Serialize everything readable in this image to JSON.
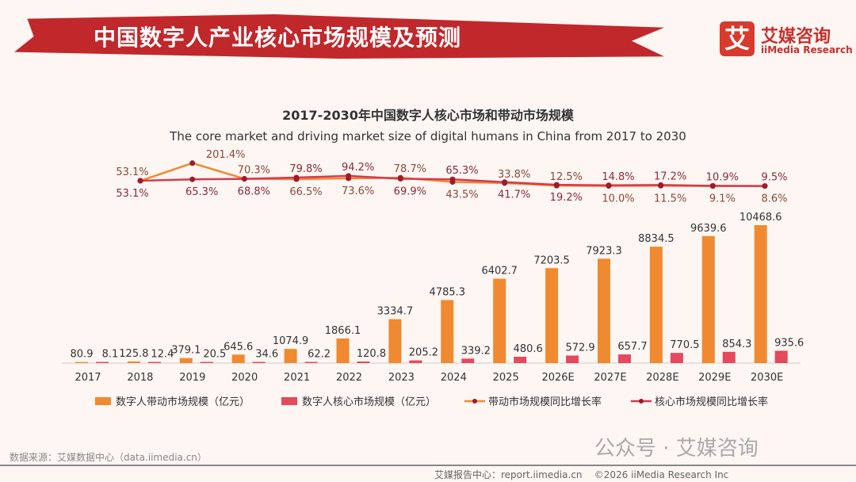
{
  "header": {
    "title": "中国数字人产业核心市场规模及预测",
    "logo_mark": "艾",
    "logo_cn": "艾媒咨询",
    "logo_en": "iiMedia Research"
  },
  "chart_data": {
    "type": "bar",
    "title": "2017-2030年中国数字人核心市场和带动市场规模",
    "subtitle": "The core market and driving market size of digital humans in China from 2017 to 2030",
    "categories": [
      "2017",
      "2018",
      "2019",
      "2020",
      "2021",
      "2022",
      "2023",
      "2024",
      "2025",
      "2026E",
      "2027E",
      "2028E",
      "2029E",
      "2030E"
    ],
    "series": [
      {
        "name": "数字人带动市场规模（亿元）",
        "type": "bar",
        "color": "#f08a30",
        "values": [
          80.9,
          125.8,
          379.1,
          645.6,
          1074.9,
          1866.1,
          3334.7,
          4785.3,
          6402.7,
          7203.5,
          7923.3,
          8834.5,
          9639.6,
          10468.6
        ]
      },
      {
        "name": "数字人核心市场规模（亿元）",
        "type": "bar",
        "color": "#e5495c",
        "values": [
          8.1,
          12.4,
          20.5,
          34.6,
          62.2,
          120.8,
          205.2,
          339.2,
          480.6,
          572.9,
          657.7,
          770.5,
          854.3,
          935.6
        ]
      },
      {
        "name": "带动市场规模同比增长率",
        "type": "line",
        "color": "#f08a30",
        "values": [
          null,
          53.1,
          201.4,
          70.3,
          66.5,
          73.6,
          78.7,
          43.5,
          33.8,
          12.5,
          10.0,
          11.5,
          9.1,
          8.6
        ]
      },
      {
        "name": "核心市场规模同比增长率",
        "type": "line",
        "color": "#d63a50",
        "values": [
          null,
          53.1,
          65.3,
          68.8,
          79.8,
          94.2,
          69.9,
          65.3,
          41.7,
          19.2,
          14.8,
          17.2,
          10.9,
          9.5
        ]
      }
    ],
    "line_label_positions": {
      "drive": [
        "above",
        "above",
        "above",
        "below",
        "below",
        "above",
        "below",
        "above",
        "above",
        "below",
        "below",
        "below",
        "below"
      ],
      "core": [
        "below",
        "below",
        "below",
        "above",
        "above",
        "below",
        "above",
        "below",
        "below",
        "above",
        "above",
        "above",
        "above"
      ]
    },
    "unit": "亿元",
    "legend": "bottom"
  },
  "footer": {
    "source": "数据来源：艾媒数据中心（data.iimedia.cn）",
    "wechat": "公众号 · 艾媒咨询",
    "report": "艾媒报告中心：report.iimedia.cn",
    "copyright": "©2026  iiMedia Research  Inc"
  }
}
